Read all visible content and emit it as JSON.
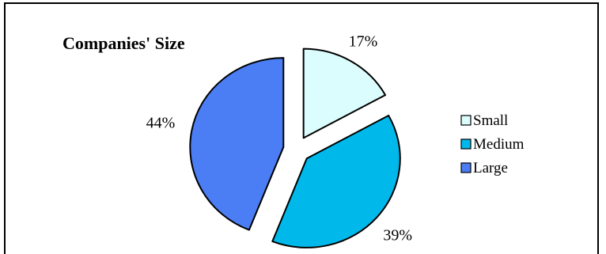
{
  "chart_data": {
    "type": "pie",
    "title": "Companies' Size",
    "exploded": true,
    "legend_position": "right",
    "series": [
      {
        "name": "Small",
        "value": 17,
        "label": "17%",
        "color": "#dcfdfd"
      },
      {
        "name": "Medium",
        "value": 39,
        "label": "39%",
        "color": "#00b9ea"
      },
      {
        "name": "Large",
        "value": 44,
        "label": "44%",
        "color": "#4b7ef4"
      }
    ]
  }
}
